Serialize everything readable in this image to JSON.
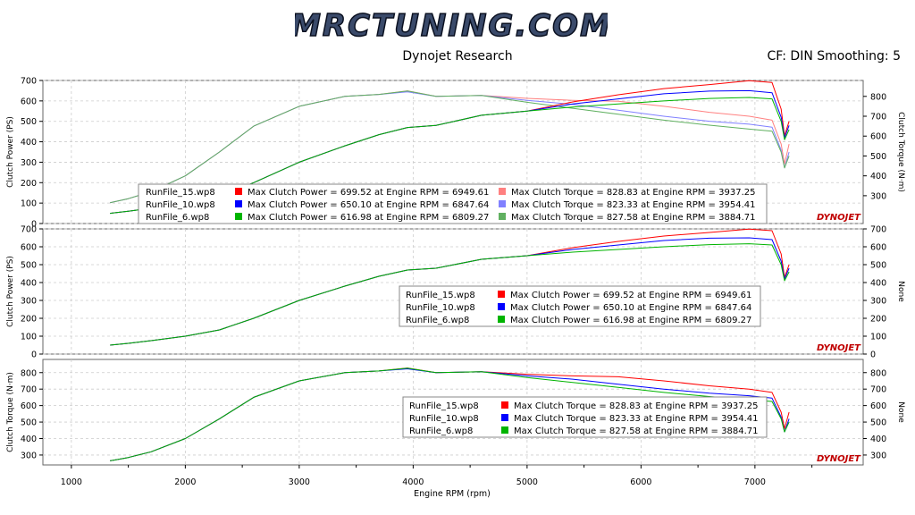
{
  "logo_text": "MRCTUNING.COM",
  "header": {
    "title": "Dynojet Research",
    "correction": "CF: DIN Smoothing: 5"
  },
  "watermark": "DYNOJET",
  "colors": {
    "run15": "#ff0000",
    "run10": "#0000ff",
    "run6": "#00b400",
    "run15_torque": "#ff8080",
    "run10_torque": "#8080ff",
    "run6_torque": "#60b060"
  },
  "chart_data": [
    {
      "type": "line",
      "title": "",
      "xlabel": "Engine RPM (rpm)",
      "ylabel": "Clutch Power (PS)",
      "y2label": "Clutch Torque (N·m)",
      "ylim": [
        0,
        700
      ],
      "y2lim": [
        160,
        880
      ],
      "xlim": [
        750,
        7950
      ],
      "yticks": [
        "0",
        "100",
        "200",
        "300",
        "400",
        "500",
        "600",
        "700"
      ],
      "y2ticks": [
        "300",
        "400",
        "500",
        "600",
        "700",
        "800"
      ],
      "grid": true,
      "legend": [
        {
          "file": "RunFile_15.wp8",
          "power": "Max Clutch Power = 699.52 at Engine RPM = 6949.61",
          "torque": "Max Clutch Torque = 828.83 at Engine RPM = 3937.25"
        },
        {
          "file": "RunFile_10.wp8",
          "power": "Max Clutch Power = 650.10 at Engine RPM = 6847.64",
          "torque": "Max Clutch Torque = 823.33 at Engine RPM = 3954.41"
        },
        {
          "file": "RunFile_6.wp8",
          "power": "Max Clutch Power = 616.98 at Engine RPM = 6809.27",
          "torque": "Max Clutch Torque = 827.58 at Engine RPM = 3884.71"
        }
      ]
    },
    {
      "type": "line",
      "ylabel": "Clutch Power (PS)",
      "y2label": "None",
      "ylim": [
        0,
        700
      ],
      "xlim": [
        750,
        7950
      ],
      "yticks": [
        "0",
        "100",
        "200",
        "300",
        "400",
        "500",
        "600",
        "700"
      ],
      "grid": true,
      "legend": [
        {
          "file": "RunFile_15.wp8",
          "text": "Max Clutch Power = 699.52 at Engine RPM = 6949.61"
        },
        {
          "file": "RunFile_10.wp8",
          "text": "Max Clutch Power = 650.10 at Engine RPM = 6847.64"
        },
        {
          "file": "RunFile_6.wp8",
          "text": "Max Clutch Power = 616.98 at Engine RPM = 6809.27"
        }
      ]
    },
    {
      "type": "line",
      "ylabel": "Clutch Torque (N·m)",
      "y2label": "None",
      "ylim": [
        240,
        880
      ],
      "xlim": [
        750,
        7950
      ],
      "yticks": [
        "300",
        "400",
        "500",
        "600",
        "700",
        "800"
      ],
      "grid": true,
      "legend": [
        {
          "file": "RunFile_15.wp8",
          "text": "Max Clutch Torque = 828.83 at Engine RPM = 3937.25"
        },
        {
          "file": "RunFile_10.wp8",
          "text": "Max Clutch Torque = 823.33 at Engine RPM = 3954.41"
        },
        {
          "file": "RunFile_6.wp8",
          "text": "Max Clutch Torque = 827.58 at Engine RPM = 3884.71"
        }
      ]
    }
  ],
  "xticks": [
    "1000",
    "2000",
    "3000",
    "4000",
    "5000",
    "6000",
    "7000"
  ],
  "xtick_values": [
    1000,
    2000,
    3000,
    4000,
    5000,
    6000,
    7000
  ],
  "series": {
    "rpm": [
      1340,
      1500,
      1700,
      2000,
      2300,
      2600,
      3000,
      3400,
      3700,
      3950,
      4200,
      4600,
      5000,
      5400,
      5800,
      6200,
      6600,
      6950,
      7150,
      7230,
      7260,
      7300
    ],
    "power": {
      "run15": [
        50,
        60,
        75,
        100,
        135,
        200,
        300,
        380,
        435,
        470,
        480,
        530,
        550,
        595,
        630,
        660,
        680,
        699,
        690,
        560,
        430,
        500
      ],
      "run10": [
        50,
        60,
        75,
        100,
        135,
        200,
        300,
        380,
        435,
        470,
        480,
        530,
        550,
        585,
        610,
        635,
        648,
        650,
        640,
        520,
        420,
        480
      ],
      "run6": [
        50,
        60,
        75,
        100,
        135,
        200,
        300,
        380,
        435,
        470,
        480,
        530,
        550,
        570,
        585,
        600,
        612,
        617,
        610,
        500,
        410,
        460
      ]
    },
    "torque": {
      "run15": [
        265,
        285,
        320,
        400,
        520,
        650,
        750,
        800,
        810,
        828,
        800,
        805,
        790,
        780,
        775,
        750,
        720,
        700,
        680,
        560,
        460,
        560
      ],
      "run10": [
        265,
        285,
        320,
        400,
        520,
        650,
        750,
        800,
        810,
        823,
        800,
        805,
        780,
        760,
        730,
        700,
        675,
        660,
        645,
        530,
        440,
        520
      ],
      "run6": [
        265,
        285,
        320,
        400,
        520,
        650,
        750,
        800,
        810,
        827,
        800,
        805,
        770,
        740,
        710,
        680,
        655,
        635,
        625,
        520,
        440,
        500
      ]
    }
  }
}
